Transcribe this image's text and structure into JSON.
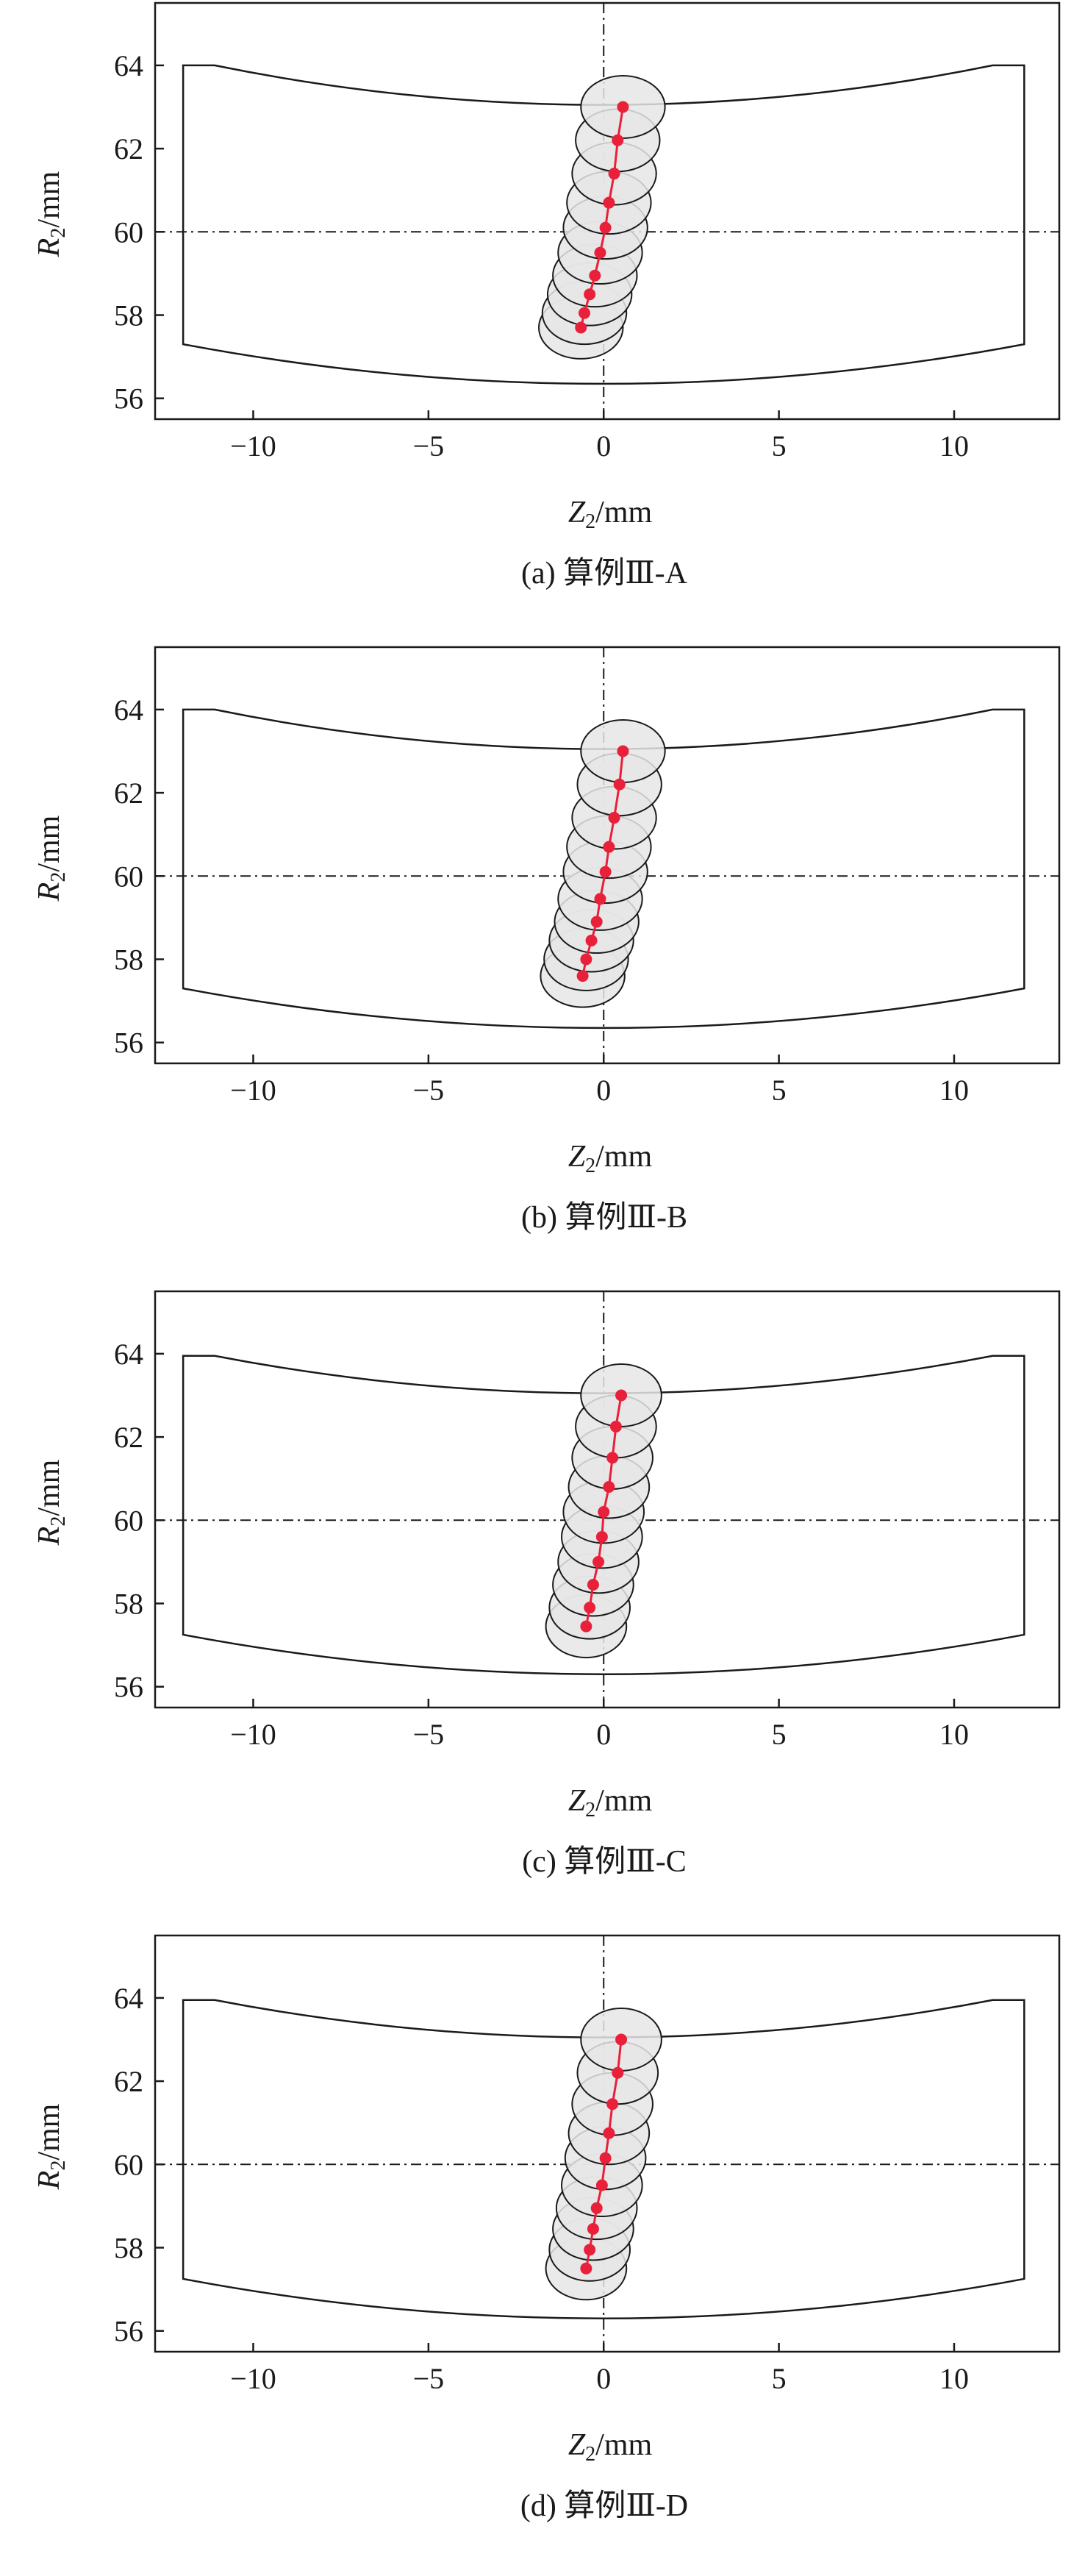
{
  "chart_data": [
    {
      "type": "scatter",
      "caption": "(a) 算例Ⅲ-A",
      "xlabel": {
        "symbol": "Z",
        "sub": "2",
        "unit": "/mm"
      },
      "ylabel": {
        "symbol": "R",
        "sub": "2",
        "unit": "/mm"
      },
      "xlim": [
        -12.8,
        13.0
      ],
      "ylim": [
        55.5,
        65.5
      ],
      "xticks": [
        {
          "v": -10,
          "label": "−10"
        },
        {
          "v": -5,
          "label": "−5"
        },
        {
          "v": 0,
          "label": "0"
        },
        {
          "v": 5,
          "label": "5"
        },
        {
          "v": 10,
          "label": "10"
        }
      ],
      "yticks": [
        {
          "v": 56,
          "label": "56"
        },
        {
          "v": 58,
          "label": "58"
        },
        {
          "v": 60,
          "label": "60"
        },
        {
          "v": 62,
          "label": "62"
        },
        {
          "v": 64,
          "label": "64"
        }
      ],
      "grid": false,
      "reference_lines": {
        "x": 0,
        "y": 60
      },
      "colors": {
        "points": "#e8203a",
        "ellipse_fill": "#e6e6e6",
        "outline": "#1a1a1a"
      },
      "section": {
        "z_outer": 12.0,
        "z_corner": 11.1,
        "outer_top": 64.0,
        "outer_mid": 63.05,
        "inner_edge": 57.3,
        "inner_mid": 56.35
      },
      "ellipse_radii": {
        "z": 1.2,
        "r": 0.75
      },
      "points": [
        {
          "z": 0.55,
          "r": 63.0
        },
        {
          "z": 0.4,
          "r": 62.2
        },
        {
          "z": 0.3,
          "r": 61.4
        },
        {
          "z": 0.15,
          "r": 60.7
        },
        {
          "z": 0.05,
          "r": 60.1
        },
        {
          "z": -0.1,
          "r": 59.5
        },
        {
          "z": -0.25,
          "r": 58.95
        },
        {
          "z": -0.4,
          "r": 58.5
        },
        {
          "z": -0.55,
          "r": 58.05
        },
        {
          "z": -0.65,
          "r": 57.7
        }
      ]
    },
    {
      "type": "scatter",
      "caption": "(b) 算例Ⅲ-B",
      "xlabel": {
        "symbol": "Z",
        "sub": "2",
        "unit": "/mm"
      },
      "ylabel": {
        "symbol": "R",
        "sub": "2",
        "unit": "/mm"
      },
      "xlim": [
        -12.8,
        13.0
      ],
      "ylim": [
        55.5,
        65.5
      ],
      "xticks": [
        {
          "v": -10,
          "label": "−10"
        },
        {
          "v": -5,
          "label": "−5"
        },
        {
          "v": 0,
          "label": "0"
        },
        {
          "v": 5,
          "label": "5"
        },
        {
          "v": 10,
          "label": "10"
        }
      ],
      "yticks": [
        {
          "v": 56,
          "label": "56"
        },
        {
          "v": 58,
          "label": "58"
        },
        {
          "v": 60,
          "label": "60"
        },
        {
          "v": 62,
          "label": "62"
        },
        {
          "v": 64,
          "label": "64"
        }
      ],
      "grid": false,
      "reference_lines": {
        "x": 0,
        "y": 60
      },
      "colors": {
        "points": "#e8203a",
        "ellipse_fill": "#e6e6e6",
        "outline": "#1a1a1a"
      },
      "section": {
        "z_outer": 12.0,
        "z_corner": 11.1,
        "outer_top": 64.0,
        "outer_mid": 63.05,
        "inner_edge": 57.3,
        "inner_mid": 56.35
      },
      "ellipse_radii": {
        "z": 1.2,
        "r": 0.75
      },
      "points": [
        {
          "z": 0.55,
          "r": 63.0
        },
        {
          "z": 0.45,
          "r": 62.2
        },
        {
          "z": 0.3,
          "r": 61.4
        },
        {
          "z": 0.15,
          "r": 60.7
        },
        {
          "z": 0.05,
          "r": 60.1
        },
        {
          "z": -0.1,
          "r": 59.45
        },
        {
          "z": -0.2,
          "r": 58.9
        },
        {
          "z": -0.35,
          "r": 58.45
        },
        {
          "z": -0.5,
          "r": 58.0
        },
        {
          "z": -0.6,
          "r": 57.6
        }
      ]
    },
    {
      "type": "scatter",
      "caption": "(c) 算例Ⅲ-C",
      "xlabel": {
        "symbol": "Z",
        "sub": "2",
        "unit": "/mm"
      },
      "ylabel": {
        "symbol": "R",
        "sub": "2",
        "unit": "/mm"
      },
      "xlim": [
        -12.8,
        13.0
      ],
      "ylim": [
        55.5,
        65.5
      ],
      "xticks": [
        {
          "v": -10,
          "label": "−10"
        },
        {
          "v": -5,
          "label": "−5"
        },
        {
          "v": 0,
          "label": "0"
        },
        {
          "v": 5,
          "label": "5"
        },
        {
          "v": 10,
          "label": "10"
        }
      ],
      "yticks": [
        {
          "v": 56,
          "label": "56"
        },
        {
          "v": 58,
          "label": "58"
        },
        {
          "v": 60,
          "label": "60"
        },
        {
          "v": 62,
          "label": "62"
        },
        {
          "v": 64,
          "label": "64"
        }
      ],
      "grid": false,
      "reference_lines": {
        "x": 0,
        "y": 60
      },
      "colors": {
        "points": "#e8203a",
        "ellipse_fill": "#e6e6e6",
        "outline": "#1a1a1a"
      },
      "section": {
        "z_outer": 12.0,
        "z_corner": 11.1,
        "outer_top": 63.95,
        "outer_mid": 63.05,
        "inner_edge": 57.25,
        "inner_mid": 56.3
      },
      "ellipse_radii": {
        "z": 1.15,
        "r": 0.75
      },
      "points": [
        {
          "z": 0.5,
          "r": 63.0
        },
        {
          "z": 0.35,
          "r": 62.25
        },
        {
          "z": 0.25,
          "r": 61.5
        },
        {
          "z": 0.15,
          "r": 60.8
        },
        {
          "z": 0.0,
          "r": 60.2
        },
        {
          "z": -0.05,
          "r": 59.6
        },
        {
          "z": -0.15,
          "r": 59.0
        },
        {
          "z": -0.3,
          "r": 58.45
        },
        {
          "z": -0.4,
          "r": 57.9
        },
        {
          "z": -0.5,
          "r": 57.45
        }
      ]
    },
    {
      "type": "scatter",
      "caption": "(d) 算例Ⅲ-D",
      "xlabel": {
        "symbol": "Z",
        "sub": "2",
        "unit": "/mm"
      },
      "ylabel": {
        "symbol": "R",
        "sub": "2",
        "unit": "/mm"
      },
      "xlim": [
        -12.8,
        13.0
      ],
      "ylim": [
        55.5,
        65.5
      ],
      "xticks": [
        {
          "v": -10,
          "label": "−10"
        },
        {
          "v": -5,
          "label": "−5"
        },
        {
          "v": 0,
          "label": "0"
        },
        {
          "v": 5,
          "label": "5"
        },
        {
          "v": 10,
          "label": "10"
        }
      ],
      "yticks": [
        {
          "v": 56,
          "label": "56"
        },
        {
          "v": 58,
          "label": "58"
        },
        {
          "v": 60,
          "label": "60"
        },
        {
          "v": 62,
          "label": "62"
        },
        {
          "v": 64,
          "label": "64"
        }
      ],
      "grid": false,
      "reference_lines": {
        "x": 0,
        "y": 60
      },
      "colors": {
        "points": "#e8203a",
        "ellipse_fill": "#e6e6e6",
        "outline": "#1a1a1a"
      },
      "section": {
        "z_outer": 12.0,
        "z_corner": 11.1,
        "outer_top": 63.95,
        "outer_mid": 63.05,
        "inner_edge": 57.25,
        "inner_mid": 56.3
      },
      "ellipse_radii": {
        "z": 1.15,
        "r": 0.75
      },
      "points": [
        {
          "z": 0.5,
          "r": 63.0
        },
        {
          "z": 0.4,
          "r": 62.2
        },
        {
          "z": 0.25,
          "r": 61.45
        },
        {
          "z": 0.15,
          "r": 60.75
        },
        {
          "z": 0.05,
          "r": 60.15
        },
        {
          "z": -0.05,
          "r": 59.5
        },
        {
          "z": -0.2,
          "r": 58.95
        },
        {
          "z": -0.3,
          "r": 58.45
        },
        {
          "z": -0.4,
          "r": 57.95
        },
        {
          "z": -0.5,
          "r": 57.5
        }
      ]
    }
  ]
}
